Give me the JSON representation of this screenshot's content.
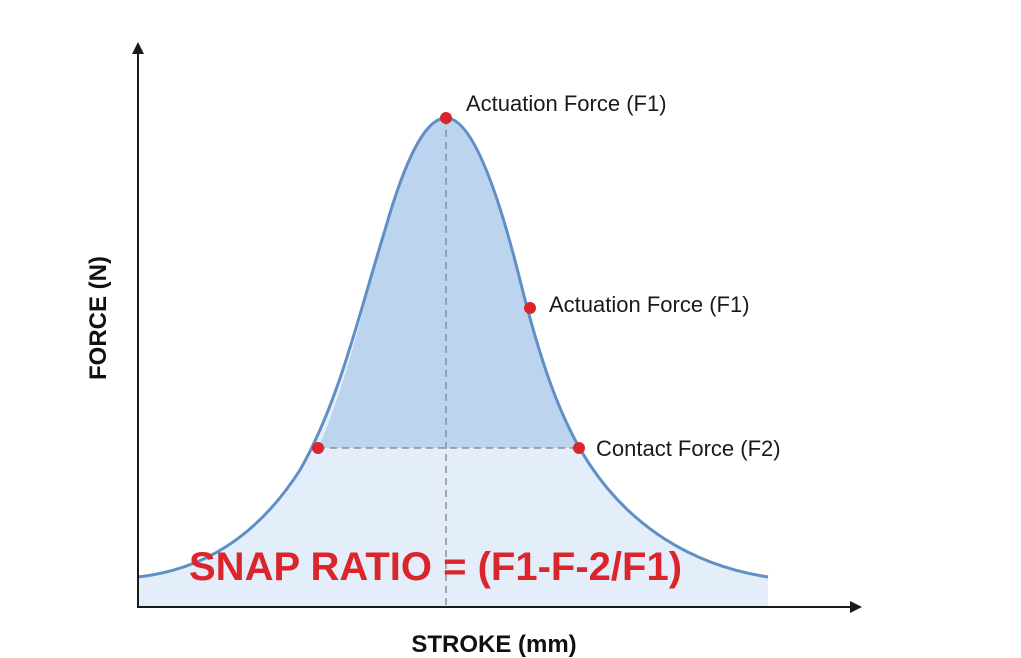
{
  "diagram": {
    "x_axis_label": "STROKE (mm)",
    "y_axis_label": "FORCE (N)",
    "annotations": {
      "peak": "Actuation Force (F1)",
      "mid": "Actuation Force (F1)",
      "contact": "Contact Force (F2)"
    },
    "formula": "SNAP RATIO = (F1-F-2/F1)"
  },
  "colors": {
    "curve_stroke": "#5f8fc4",
    "upper_fill": "#bcd4ed",
    "lower_fill": "#e4eefa",
    "marker": "#d9252b",
    "formula": "#d9252b",
    "axis": "#1a1a1a",
    "guide_line": "#8a8f96"
  }
}
